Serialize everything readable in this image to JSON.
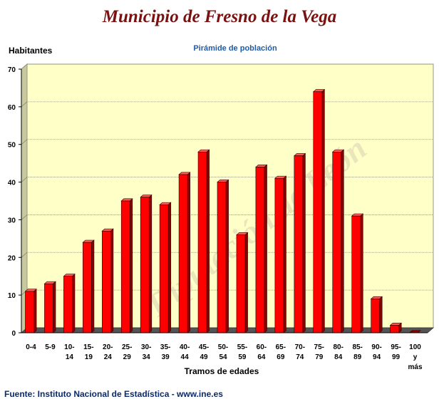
{
  "page": {
    "title": "Municipio de Fresno de la Vega",
    "source": "Fuente: Instituto Nacional de Estadística - www.ine.es",
    "watermark": "Diputación de León"
  },
  "colors": {
    "bar_front": "#ff0000",
    "bar_side": "#8a0000",
    "bar_top": "#ff5a5a",
    "plot_back": "#ffffc8",
    "plot_floor": "#555555",
    "title": "#7a1010",
    "subtitle": "#1f5aa6"
  },
  "chart_data": {
    "type": "bar",
    "title": "Pirámide de población",
    "xlabel": "Tramos de edades",
    "ylabel": "Habitantes",
    "ylim": [
      0,
      70
    ],
    "yticks": [
      0,
      10,
      20,
      30,
      40,
      50,
      60,
      70
    ],
    "grid": true,
    "categories": [
      [
        "0-4"
      ],
      [
        "5-9"
      ],
      [
        "10-",
        "14"
      ],
      [
        "15-",
        "19"
      ],
      [
        "20-",
        "24"
      ],
      [
        "25-",
        "29"
      ],
      [
        "30-",
        "34"
      ],
      [
        "35-",
        "39"
      ],
      [
        "40-",
        "44"
      ],
      [
        "45-",
        "49"
      ],
      [
        "50-",
        "54"
      ],
      [
        "55-",
        "59"
      ],
      [
        "60-",
        "64"
      ],
      [
        "65-",
        "69"
      ],
      [
        "70-",
        "74"
      ],
      [
        "75-",
        "79"
      ],
      [
        "80-",
        "84"
      ],
      [
        "85-",
        "89"
      ],
      [
        "90-",
        "94"
      ],
      [
        "95-",
        "99"
      ],
      [
        "100",
        "y",
        "más"
      ]
    ],
    "values": [
      11,
      13,
      15,
      24,
      27,
      35,
      36,
      34,
      42,
      48,
      40,
      26,
      44,
      41,
      47,
      64,
      48,
      31,
      9,
      2,
      0
    ]
  }
}
